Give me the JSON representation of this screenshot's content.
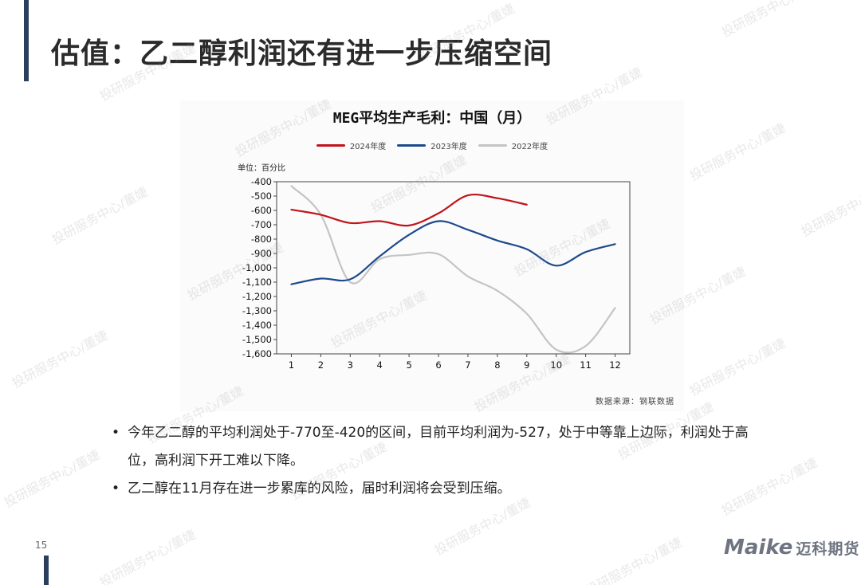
{
  "page": {
    "title": "估值：乙二醇利润还有进一步压缩空间",
    "page_number": "15",
    "watermark": "投研服务中心/董婕",
    "logo": {
      "mark": "Maike",
      "cn": "迈科期货"
    }
  },
  "chart_data": {
    "type": "line",
    "title": "MEG平均生产毛利：中国（月）",
    "unit_label": "单位：百分比",
    "source": "数据来源：钢联数据",
    "xlabel": "",
    "ylabel": "",
    "x": [
      1,
      2,
      3,
      4,
      5,
      6,
      7,
      8,
      9,
      10,
      11,
      12
    ],
    "ylim": [
      -1600,
      -400
    ],
    "yticks": [
      -400,
      -500,
      -600,
      -700,
      -800,
      -900,
      -1000,
      -1100,
      -1200,
      -1300,
      -1400,
      -1500,
      -1600
    ],
    "ytick_labels": [
      "-400",
      "-500",
      "-600",
      "-700",
      "-800",
      "-900",
      "-1,000",
      "-1,100",
      "-1,200",
      "-1,300",
      "-1,400",
      "-1,500",
      "-1,600"
    ],
    "legend_position": "top-center",
    "grid": false,
    "series": [
      {
        "name": "2024年度",
        "color": "#c0141b",
        "values": [
          -595,
          -630,
          -688,
          -675,
          -705,
          -620,
          -495,
          -515,
          -560,
          null,
          null,
          null
        ]
      },
      {
        "name": "2023年度",
        "color": "#1e4a8d",
        "values": [
          -1115,
          -1075,
          -1080,
          -920,
          -770,
          -675,
          -735,
          -810,
          -870,
          -985,
          -890,
          -835
        ]
      },
      {
        "name": "2022年度",
        "color": "#c4c4c4",
        "values": [
          -430,
          -630,
          -1100,
          -940,
          -910,
          -905,
          -1060,
          -1160,
          -1320,
          -1570,
          -1545,
          -1280
        ]
      }
    ]
  },
  "bullets": [
    "今年乙二醇的平均利润处于-770至-420的区间，目前平均利润为-527，处于中等靠上边际，利润处于高位，高利润下开工难以下降。",
    "乙二醇在11月存在进一步累库的风险，届时利润将会受到压缩。"
  ]
}
